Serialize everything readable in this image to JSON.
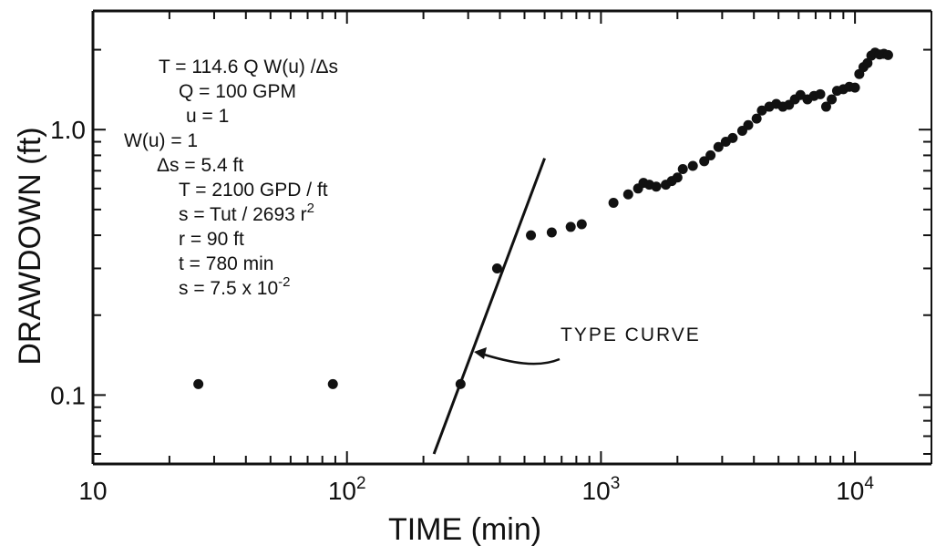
{
  "chart_data": {
    "type": "scatter",
    "xlabel": "TIME (min)",
    "ylabel": "DRAWDOWN (ft)",
    "xscale": "log",
    "yscale": "log",
    "xlim": [
      10,
      20000
    ],
    "ylim": [
      0.055,
      2.8
    ],
    "x_tick_labels": [
      {
        "value": 10,
        "base": "10",
        "exp": ""
      },
      {
        "value": 100,
        "base": "10",
        "exp": "2"
      },
      {
        "value": 1000,
        "base": "10",
        "exp": "3"
      },
      {
        "value": 10000,
        "base": "10",
        "exp": "4"
      }
    ],
    "y_tick_labels": [
      {
        "value": 0.1,
        "label": "0.1"
      },
      {
        "value": 1.0,
        "label": "1.0"
      }
    ],
    "grid": false,
    "annotations": [
      {
        "base": "T = 114.6 Q W(u) /Δs",
        "sup": ""
      },
      {
        "base": "Q = 100 GPM",
        "sup": ""
      },
      {
        "base": "u = 1",
        "sup": ""
      },
      {
        "base": "W(u) = 1",
        "sup": ""
      },
      {
        "base": "Δs = 5.4 ft",
        "sup": ""
      },
      {
        "base": "T = 2100 GPD / ft",
        "sup": ""
      },
      {
        "base": "s = Tut / 2693 r",
        "sup": "2"
      },
      {
        "base": "r = 90 ft",
        "sup": ""
      },
      {
        "base": "t = 780 min",
        "sup": ""
      },
      {
        "base": "s = 7.5 x 10",
        "sup": "-2"
      }
    ],
    "type_curve_label": "TYPE CURVE",
    "type_curve": {
      "x": [
        220,
        600
      ],
      "y": [
        0.06,
        0.78
      ]
    },
    "series": [
      {
        "points": [
          {
            "x": 26,
            "y": 0.11
          },
          {
            "x": 88,
            "y": 0.11
          },
          {
            "x": 280,
            "y": 0.11
          },
          {
            "x": 390,
            "y": 0.3
          },
          {
            "x": 530,
            "y": 0.4
          },
          {
            "x": 640,
            "y": 0.41
          },
          {
            "x": 760,
            "y": 0.43
          },
          {
            "x": 840,
            "y": 0.44
          },
          {
            "x": 1120,
            "y": 0.53
          },
          {
            "x": 1280,
            "y": 0.57
          },
          {
            "x": 1400,
            "y": 0.6
          },
          {
            "x": 1470,
            "y": 0.63
          },
          {
            "x": 1550,
            "y": 0.62
          },
          {
            "x": 1650,
            "y": 0.61
          },
          {
            "x": 1800,
            "y": 0.62
          },
          {
            "x": 1900,
            "y": 0.64
          },
          {
            "x": 2000,
            "y": 0.66
          },
          {
            "x": 2100,
            "y": 0.71
          },
          {
            "x": 2300,
            "y": 0.73
          },
          {
            "x": 2550,
            "y": 0.76
          },
          {
            "x": 2700,
            "y": 0.8
          },
          {
            "x": 2900,
            "y": 0.86
          },
          {
            "x": 3100,
            "y": 0.9
          },
          {
            "x": 3300,
            "y": 0.93
          },
          {
            "x": 3600,
            "y": 0.99
          },
          {
            "x": 3800,
            "y": 1.04
          },
          {
            "x": 4100,
            "y": 1.1
          },
          {
            "x": 4300,
            "y": 1.18
          },
          {
            "x": 4600,
            "y": 1.22
          },
          {
            "x": 4900,
            "y": 1.25
          },
          {
            "x": 5200,
            "y": 1.22
          },
          {
            "x": 5500,
            "y": 1.24
          },
          {
            "x": 5800,
            "y": 1.3
          },
          {
            "x": 6100,
            "y": 1.35
          },
          {
            "x": 6500,
            "y": 1.3
          },
          {
            "x": 6900,
            "y": 1.34
          },
          {
            "x": 7300,
            "y": 1.36
          },
          {
            "x": 7700,
            "y": 1.22
          },
          {
            "x": 8100,
            "y": 1.3
          },
          {
            "x": 8500,
            "y": 1.4
          },
          {
            "x": 9000,
            "y": 1.42
          },
          {
            "x": 9500,
            "y": 1.45
          },
          {
            "x": 10000,
            "y": 1.44
          },
          {
            "x": 10400,
            "y": 1.62
          },
          {
            "x": 10800,
            "y": 1.72
          },
          {
            "x": 11200,
            "y": 1.78
          },
          {
            "x": 11600,
            "y": 1.9
          },
          {
            "x": 12000,
            "y": 1.95
          },
          {
            "x": 12500,
            "y": 1.92
          },
          {
            "x": 13000,
            "y": 1.93
          },
          {
            "x": 13500,
            "y": 1.91
          }
        ]
      }
    ]
  }
}
